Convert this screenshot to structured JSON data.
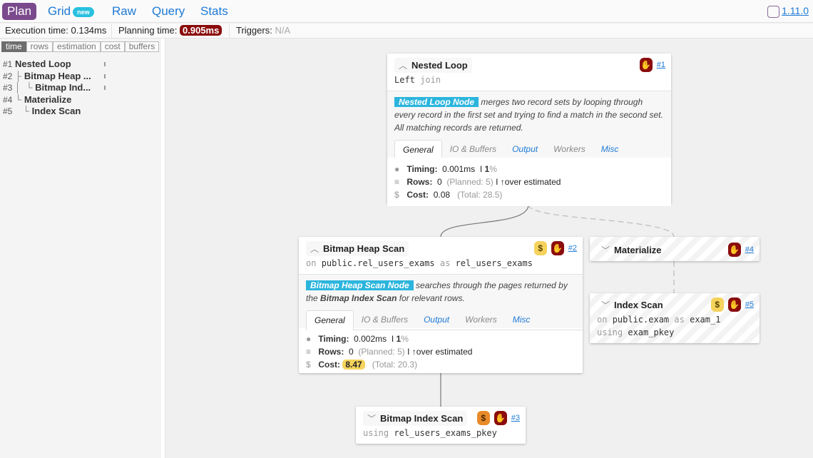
{
  "nav": {
    "tabs": [
      {
        "label": "Plan",
        "active": true
      },
      {
        "label": "Grid",
        "badge": "new"
      },
      {
        "label": "Raw"
      },
      {
        "label": "Query"
      },
      {
        "label": "Stats"
      }
    ],
    "version": "1.11.0"
  },
  "stats": {
    "execution_label": "Execution time:",
    "execution_value": "0.134ms",
    "planning_label": "Planning time:",
    "planning_value": "0.905ms",
    "triggers_label": "Triggers:",
    "triggers_value": "N/A"
  },
  "sidebar": {
    "tabs": [
      "time",
      "rows",
      "estimation",
      "cost",
      "buffers"
    ],
    "active_tab": "time",
    "tree": [
      {
        "num": "#1",
        "prefix": "",
        "label": "Nested Loop"
      },
      {
        "num": "#2",
        "prefix": "├",
        "label": "Bitmap Heap ..."
      },
      {
        "num": "#3",
        "prefix": "│  └",
        "label": "Bitmap Ind..."
      },
      {
        "num": "#4",
        "prefix": "└",
        "label": "Materialize"
      },
      {
        "num": "#5",
        "prefix": "   └",
        "label": "Index Scan"
      }
    ]
  },
  "nodes": [
    {
      "id": "#1",
      "title": "Nested Loop",
      "sub1": "Left",
      "sub1k": "join",
      "desc_hl": "Nested Loop Node",
      "desc": "merges two record sets by looping through every record in the first set and trying to find a match in the second set. All matching records are returned.",
      "tabs": [
        "General",
        "IO & Buffers",
        "Output",
        "Workers",
        "Misc"
      ],
      "timing_label": "Timing:",
      "timing": "0.001ms",
      "timing_pct": "1",
      "rows_label": "Rows:",
      "rows": "0",
      "planned": "(Planned: 5)",
      "estimate": "over estimated",
      "cost_label": "Cost:",
      "cost": "0.08",
      "total": "(Total: 28.5)",
      "icons": [
        "thumbs-down"
      ]
    },
    {
      "id": "#2",
      "title": "Bitmap Heap Scan",
      "on": "on",
      "table": "public.rel_users_exams",
      "as": "as",
      "alias": "rel_users_exams",
      "desc_hl": "Bitmap Heap Scan Node",
      "desc_a": "searches through the pages returned by the",
      "desc_b": "Bitmap Index Scan",
      "desc_c": "for relevant rows.",
      "tabs": [
        "General",
        "IO & Buffers",
        "Output",
        "Workers",
        "Misc"
      ],
      "timing_label": "Timing:",
      "timing": "0.002ms",
      "timing_pct": "1",
      "rows_label": "Rows:",
      "rows": "0",
      "planned": "(Planned: 5)",
      "estimate": "over estimated",
      "cost_label": "Cost:",
      "cost": "8.47",
      "total": "(Total: 20.3)",
      "icons": [
        "cost-yellow",
        "thumbs-down"
      ]
    },
    {
      "id": "#3",
      "title": "Bitmap Index Scan",
      "using": "using",
      "index": "rel_users_exams_pkey",
      "icons": [
        "cost-orange",
        "thumbs-down"
      ]
    },
    {
      "id": "#4",
      "title": "Materialize",
      "icons": [
        "thumbs-down"
      ]
    },
    {
      "id": "#5",
      "title": "Index Scan",
      "on": "on",
      "table": "public.exam",
      "as": "as",
      "alias": "exam_1",
      "using": "using",
      "index": "exam_pkey",
      "icons": [
        "cost-yellow",
        "thumbs-down"
      ]
    }
  ],
  "icon_glyphs": {
    "cost": "$",
    "pct": "%"
  },
  "colors": {
    "accent": "#7a4a8c",
    "link": "#1e7ad6",
    "danger": "#8b0c0c",
    "cost_high": "#f5d35c",
    "cost_orange": "#e98a2a",
    "node_desc": "#2bb5dd"
  }
}
